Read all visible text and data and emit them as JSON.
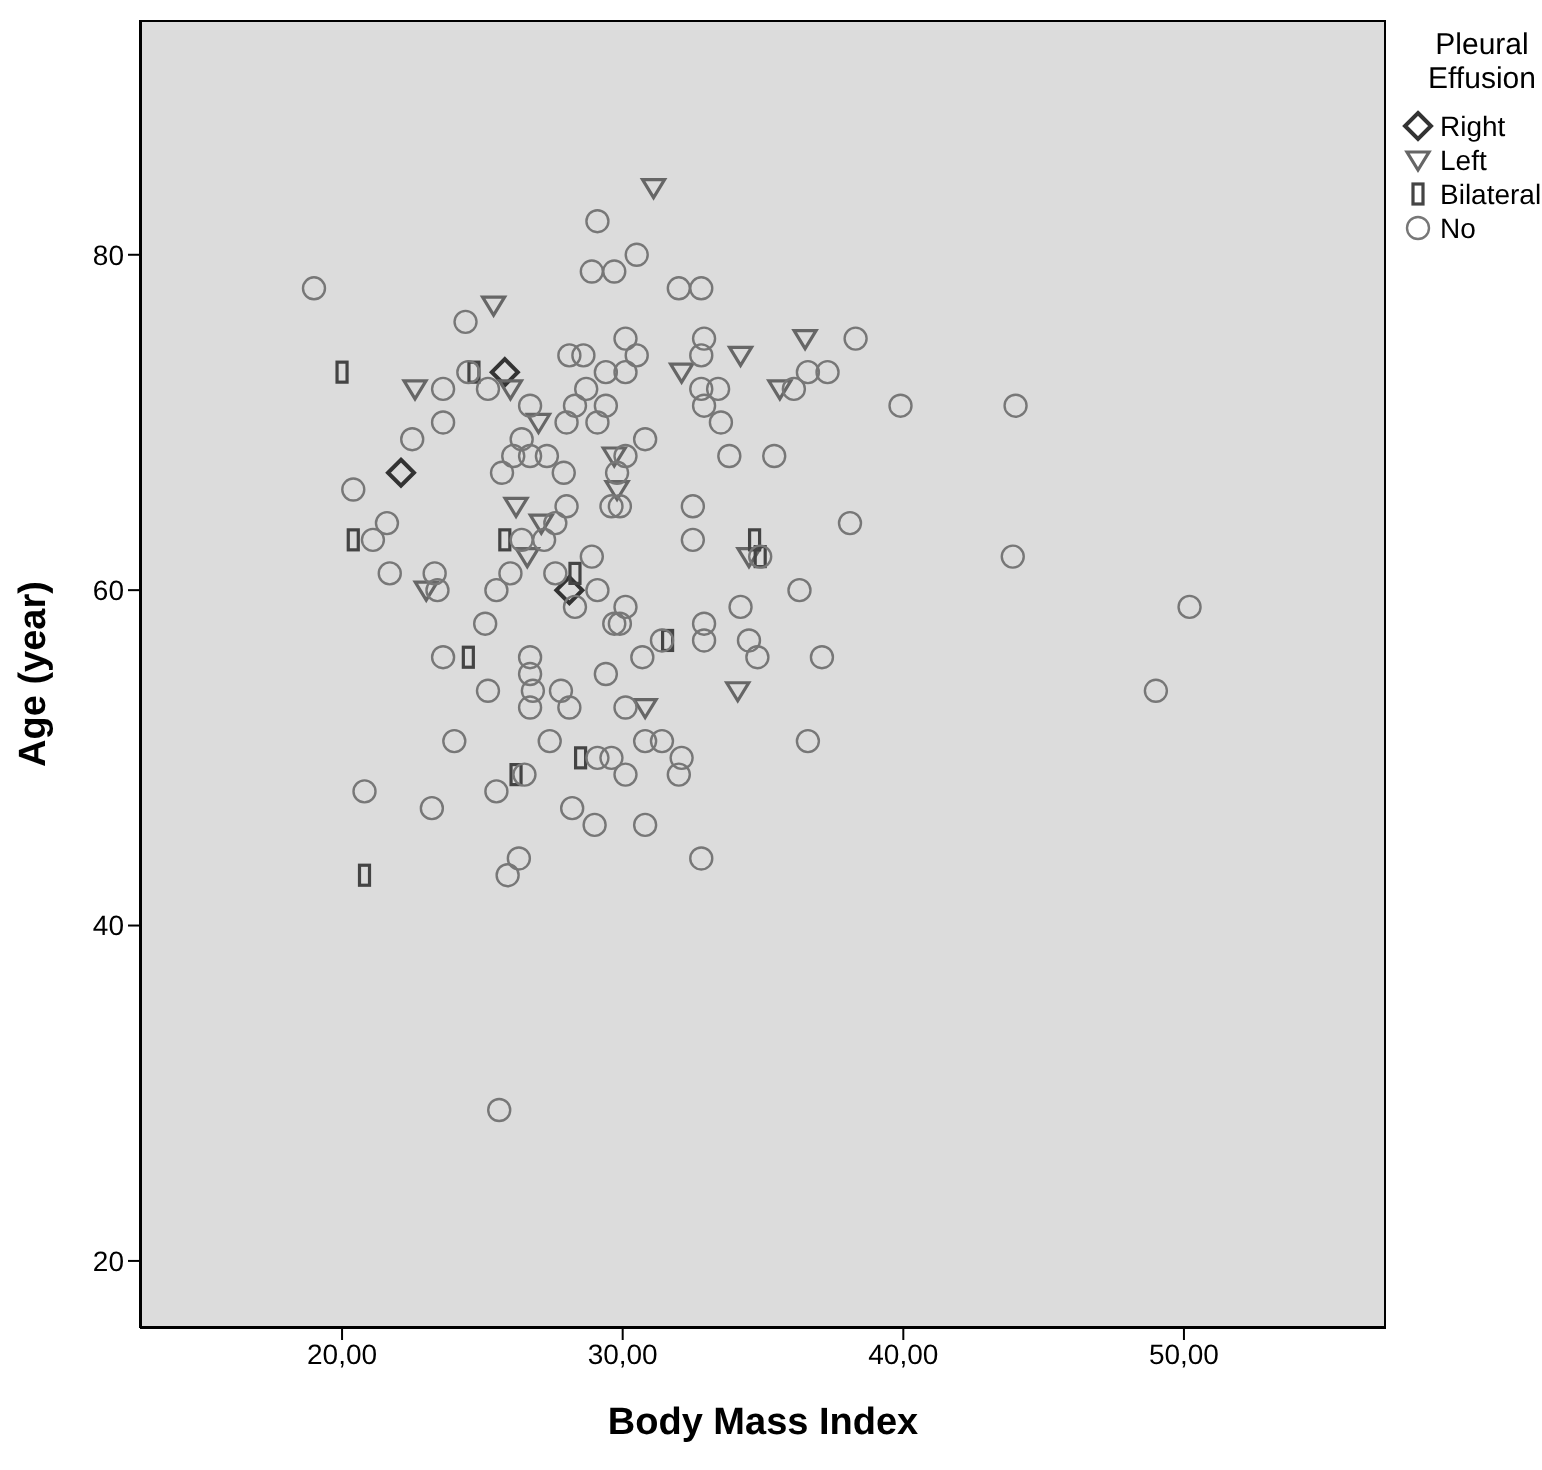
{
  "chart_data": {
    "type": "scatter",
    "xlabel": "Body Mass Index",
    "ylabel": "Age (year)",
    "legend_title": "Pleural Effusion",
    "legend": "right",
    "xlim": [
      12.8,
      57.2
    ],
    "xticks": [
      {
        "value": 20,
        "label": "20,00"
      },
      {
        "value": 30,
        "label": "30,00"
      },
      {
        "value": 40,
        "label": "40,00"
      },
      {
        "value": 50,
        "label": "50,00"
      }
    ],
    "ylim": [
      16,
      94
    ],
    "yticks": [
      20,
      40,
      60,
      80
    ],
    "series": [
      {
        "name": "Right",
        "color": "#333333",
        "marker": "diamond",
        "x": [
          25.8,
          22.1,
          28.1
        ],
        "values": [
          73,
          67,
          60
        ]
      },
      {
        "name": "Left",
        "color": "#666666",
        "marker": "triangle",
        "x": [
          31.1,
          25.4,
          26.0,
          22.6,
          27.0,
          29.7,
          29.8,
          26.2,
          27.1,
          26.6,
          23.0,
          30.8,
          36.5,
          34.2,
          32.1,
          35.6,
          34.5,
          34.1
        ],
        "values": [
          84,
          77,
          72,
          72,
          70,
          68,
          66,
          65,
          64,
          62,
          60,
          53,
          75,
          74,
          73,
          72,
          62,
          54
        ]
      },
      {
        "name": "Bilateral",
        "color": "#444444",
        "marker": "square",
        "x": [
          20.0,
          24.7,
          20.4,
          25.8,
          28.3,
          24.5,
          28.5,
          26.2,
          20.8,
          34.7,
          34.9,
          31.6
        ],
        "values": [
          73,
          73,
          63,
          63,
          61,
          56,
          50,
          49,
          43,
          63,
          62,
          57
        ]
      },
      {
        "name": "No",
        "color": "#777777",
        "marker": "circle",
        "x": [
          29.1,
          30.5,
          28.9,
          29.7,
          19.0,
          24.4,
          30.1,
          30.5,
          28.1,
          28.6,
          29.4,
          30.1,
          24.5,
          25.2,
          23.6,
          28.7,
          26.7,
          28.3,
          29.4,
          30.8,
          28.0,
          29.1,
          23.6,
          22.5,
          26.4,
          26.1,
          26.7,
          27.3,
          30.1,
          25.7,
          27.9,
          29.8,
          20.4,
          29.6,
          29.9,
          28.0,
          21.6,
          32.0,
          32.8,
          32.9,
          32.8,
          38.3,
          32.8,
          33.4,
          32.9,
          33.5,
          36.1,
          36.6,
          37.3,
          39.9,
          44.0,
          33.8,
          35.4,
          32.5,
          38.1,
          27.6,
          21.1,
          26.4,
          27.2,
          28.9,
          21.7,
          23.3,
          23.4,
          26.0,
          27.6,
          29.1,
          25.5,
          28.3,
          30.1,
          29.9,
          29.7,
          25.1,
          23.6,
          26.7,
          26.7,
          26.8,
          26.7,
          27.8,
          28.1,
          25.2,
          29.4,
          30.7,
          30.1,
          24.0,
          27.4,
          29.1,
          29.6,
          30.1,
          30.8,
          26.5,
          20.8,
          25.5,
          23.2,
          28.2,
          29.0,
          30.8,
          26.3,
          25.9,
          32.5,
          34.9,
          43.9,
          36.3,
          34.2,
          32.9,
          32.9,
          31.4,
          34.5,
          34.8,
          37.1,
          31.4,
          32.1,
          32.0,
          36.6,
          32.8,
          50.2,
          49.0,
          25.6
        ],
        "values": [
          82,
          80,
          79,
          79,
          78,
          76,
          75,
          74,
          74,
          74,
          73,
          73,
          73,
          72,
          72,
          72,
          71,
          71,
          71,
          69,
          70,
          70,
          70,
          69,
          69,
          68,
          68,
          68,
          68,
          67,
          67,
          67,
          66,
          65,
          65,
          65,
          64,
          78,
          78,
          75,
          74,
          75,
          72,
          72,
          71,
          70,
          72,
          73,
          73,
          71,
          71,
          68,
          68,
          65,
          64,
          64,
          63,
          63,
          63,
          62,
          61,
          61,
          60,
          61,
          61,
          60,
          60,
          59,
          59,
          58,
          58,
          58,
          56,
          56,
          55,
          54,
          53,
          54,
          53,
          54,
          55,
          56,
          53,
          51,
          51,
          50,
          50,
          49,
          51,
          49,
          48,
          48,
          47,
          47,
          46,
          46,
          44,
          43,
          63,
          62,
          62,
          60,
          59,
          58,
          57,
          57,
          57,
          56,
          56,
          51,
          50,
          49,
          51,
          44,
          59,
          54,
          29
        ]
      }
    ]
  }
}
